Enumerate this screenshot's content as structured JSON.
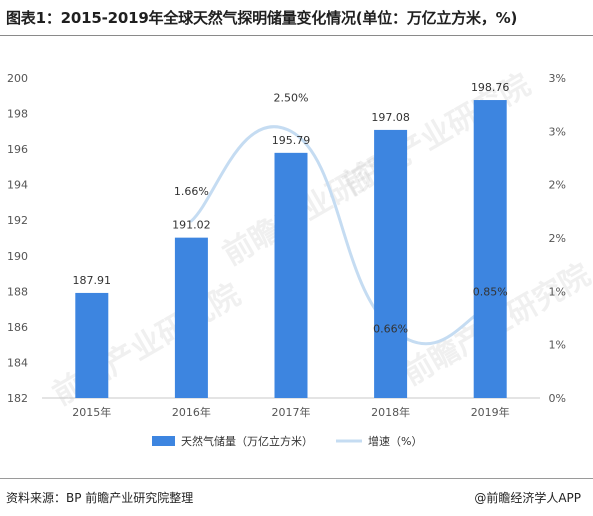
{
  "title": "图表1：2015-2019年全球天然气探明储量变化情况(单位：万亿立方米，%)",
  "source": "资料来源：BP  前瞻产业研究院整理",
  "brand": "@前瞻经济学人APP",
  "watermark": "前瞻产业研究院",
  "colors": {
    "bar": "#3d85e0",
    "line": "#c5dcf2",
    "axis_text": "#555555",
    "axis_line": "#c8c8c8"
  },
  "chart_data": {
    "type": "bar",
    "categories": [
      "2015年",
      "2016年",
      "2017年",
      "2018年",
      "2019年"
    ],
    "series": [
      {
        "name": "天然气储量（万亿立方米）",
        "type": "bar",
        "axis": "left",
        "values": [
          187.91,
          191.02,
          195.79,
          197.08,
          198.76
        ],
        "labels": [
          "187.91",
          "191.02",
          "195.79",
          "197.08",
          "198.76"
        ]
      },
      {
        "name": "增速（%）",
        "type": "line",
        "axis": "right",
        "values": [
          null,
          1.66,
          2.5,
          0.66,
          0.85
        ],
        "labels": [
          "",
          "1.66%",
          "2.50%",
          "0.66%",
          "0.85%"
        ]
      }
    ],
    "left_axis": {
      "ylim": [
        182,
        200
      ],
      "ticks": [
        "182",
        "184",
        "186",
        "188",
        "190",
        "192",
        "194",
        "196",
        "198",
        "200"
      ]
    },
    "right_axis": {
      "ylim": [
        0,
        3
      ],
      "ticks": [
        "0%",
        "1%",
        "1%",
        "2%",
        "2%",
        "3%",
        "3%"
      ]
    },
    "legend_position": "bottom",
    "grid": false
  }
}
